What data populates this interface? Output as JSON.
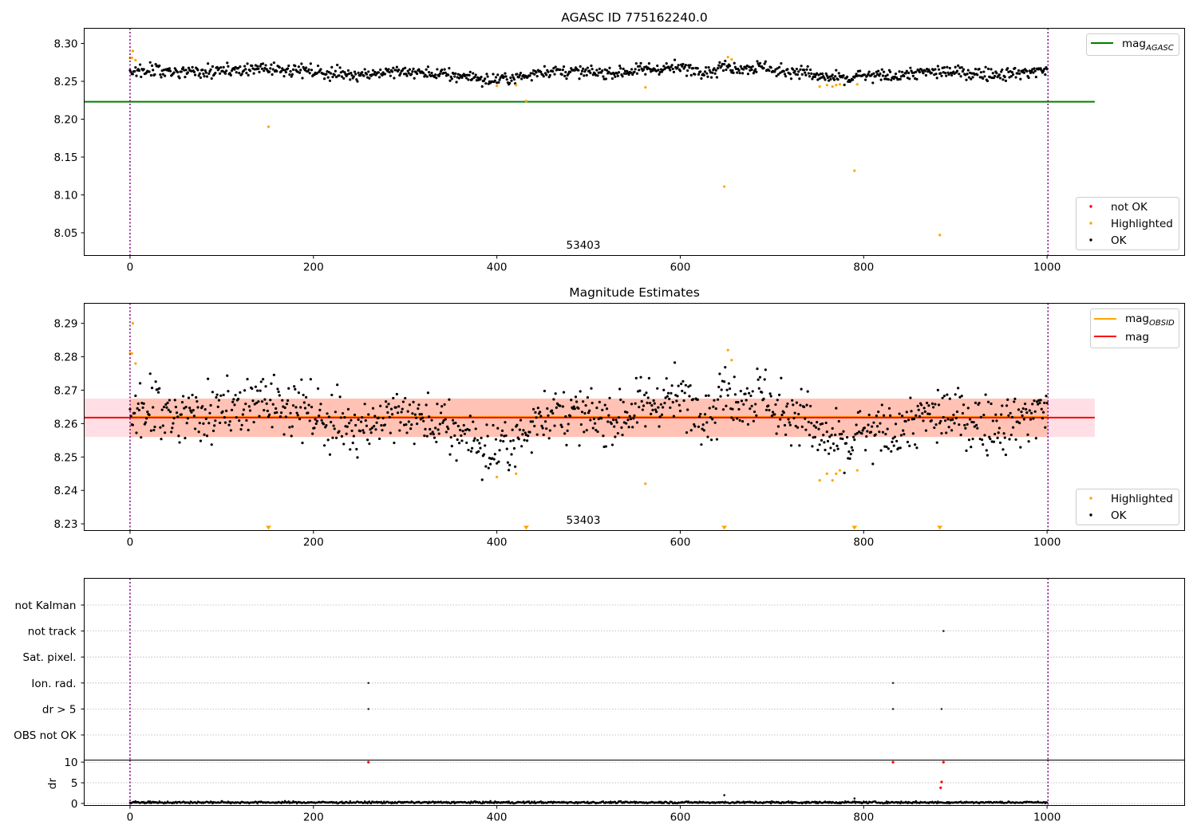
{
  "colors": {
    "ok": "#000000",
    "highlighted": "#ffa500",
    "not_ok": "#ff0000",
    "mag_agasc": "#008000",
    "mag_obsid": "#ffa500",
    "mag": "#ff0000",
    "band_mag": "#ffc0cb",
    "band_obsid": "#ffa07a",
    "obs_boundary": "#800080",
    "grid": "#b0b0b0"
  },
  "chart_data": [
    {
      "type": "scatter",
      "title": "AGASC ID 775162240.0",
      "obsid_label": "53403",
      "xlim": [
        -50,
        1150
      ],
      "ylim": [
        8.02,
        8.32
      ],
      "xticks": [
        0,
        200,
        400,
        600,
        800,
        1000
      ],
      "yticks": [
        8.05,
        8.1,
        8.15,
        8.2,
        8.25,
        8.3
      ],
      "ytick_labels": [
        "8.05",
        "8.10",
        "8.15",
        "8.20",
        "8.25",
        "8.30"
      ],
      "obs_boundaries": [
        0,
        1001
      ],
      "mag_agasc": 8.223,
      "mag_agasc_xrange": [
        -50,
        1052
      ],
      "ok_series": {
        "n": 1001,
        "base": 8.262,
        "scale": 1.0,
        "offset": 0.0
      },
      "highlighted": [
        [
          0,
          8.281
        ],
        [
          2,
          8.281
        ],
        [
          3,
          8.29
        ],
        [
          6,
          8.278
        ],
        [
          151,
          8.19
        ],
        [
          400,
          8.244
        ],
        [
          421,
          8.245
        ],
        [
          432,
          8.224
        ],
        [
          562,
          8.242
        ],
        [
          648,
          8.111
        ],
        [
          652,
          8.282
        ],
        [
          656,
          8.279
        ],
        [
          752,
          8.243
        ],
        [
          760,
          8.245
        ],
        [
          766,
          8.243
        ],
        [
          770,
          8.245
        ],
        [
          774,
          8.246
        ],
        [
          790,
          8.132
        ],
        [
          793,
          8.246
        ],
        [
          883,
          8.047
        ]
      ],
      "legend_lines": [
        {
          "label": "mag",
          "sub": "AGASC",
          "color_key": "mag_agasc"
        }
      ],
      "legend_points": [
        {
          "label": "not OK",
          "color_key": "not_ok"
        },
        {
          "label": "Highlighted",
          "color_key": "highlighted"
        },
        {
          "label": "OK",
          "color_key": "ok"
        }
      ]
    },
    {
      "type": "scatter",
      "title": "Magnitude Estimates",
      "obsid_label": "53403",
      "xlim": [
        -50,
        1150
      ],
      "ylim": [
        8.228,
        8.296
      ],
      "xticks": [
        0,
        200,
        400,
        600,
        800,
        1000
      ],
      "yticks": [
        8.23,
        8.24,
        8.25,
        8.26,
        8.27,
        8.28,
        8.29
      ],
      "ytick_labels": [
        "8.23",
        "8.24",
        "8.25",
        "8.26",
        "8.27",
        "8.28",
        "8.29"
      ],
      "obs_boundaries": [
        0,
        1001
      ],
      "mag": 8.2618,
      "mag_band": [
        8.256,
        8.2675
      ],
      "mag_band_xrange": [
        -50,
        1052
      ],
      "mag_obsid": 8.2618,
      "mag_obsid_band": [
        8.256,
        8.2675
      ],
      "mag_obsid_xrange": [
        0,
        1001
      ],
      "ok_series": {
        "n": 1001,
        "base": 8.262,
        "scale": 1.0,
        "offset": 0.0
      },
      "highlighted": [
        [
          0,
          8.281
        ],
        [
          2,
          8.281
        ],
        [
          3,
          8.29
        ],
        [
          6,
          8.278
        ],
        [
          400,
          8.244
        ],
        [
          421,
          8.245
        ],
        [
          562,
          8.242
        ],
        [
          652,
          8.282
        ],
        [
          656,
          8.279
        ],
        [
          752,
          8.243
        ],
        [
          760,
          8.245
        ],
        [
          766,
          8.243
        ],
        [
          770,
          8.245
        ],
        [
          774,
          8.246
        ],
        [
          793,
          8.246
        ]
      ],
      "out_of_range_low": [
        151,
        432,
        648,
        790,
        883
      ],
      "legend_lines": [
        {
          "label": "mag",
          "sub": "OBSID",
          "color_key": "mag_obsid"
        },
        {
          "label": "mag",
          "sub": "",
          "color_key": "mag"
        }
      ],
      "legend_points": [
        {
          "label": "Highlighted",
          "color_key": "highlighted"
        },
        {
          "label": "OK",
          "color_key": "ok"
        }
      ]
    },
    {
      "type": "scatter",
      "title": "",
      "xlim": [
        -50,
        1150
      ],
      "obs_boundaries": [
        0,
        1001
      ],
      "flag_rows": [
        "not Kalman",
        "not track",
        "Sat. pixel.",
        "Ion. rad.",
        "dr > 5",
        "OBS not OK"
      ],
      "flag_points": [
        {
          "row": "not track",
          "x": 887
        },
        {
          "row": "Ion. rad.",
          "x": 260
        },
        {
          "row": "Ion. rad.",
          "x": 832
        },
        {
          "row": "dr > 5",
          "x": 260
        },
        {
          "row": "dr > 5",
          "x": 832
        },
        {
          "row": "dr > 5",
          "x": 885
        }
      ]
    },
    {
      "type": "scatter",
      "title": "",
      "ylabel": "dr",
      "xlim": [
        -50,
        1150
      ],
      "ylim": [
        -0.5,
        10.5
      ],
      "xticks": [
        0,
        200,
        400,
        600,
        800,
        1000
      ],
      "yticks": [
        0,
        5,
        10
      ],
      "ytick_labels": [
        "0",
        "5",
        "10"
      ],
      "obs_boundaries": [
        0,
        1001
      ],
      "ok_series": {
        "n": 1001,
        "base": 0.25,
        "scale": 0.12,
        "offset": 0.0
      },
      "ok_extra": [
        [
          648,
          2.0
        ],
        [
          790,
          1.2
        ]
      ],
      "not_ok": [
        [
          260,
          10.0
        ],
        [
          832,
          10.0
        ],
        [
          887,
          10.0
        ],
        [
          885,
          5.2
        ],
        [
          884,
          3.8
        ]
      ]
    }
  ]
}
